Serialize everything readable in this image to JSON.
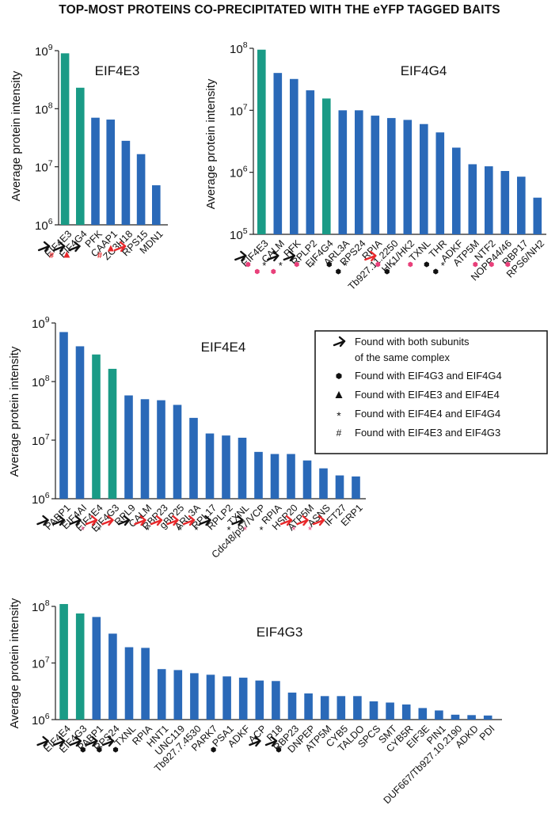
{
  "figure_title": "TOP-MOST PROTEINS CO-PRECIPITATED WITH THE eYFP TAGGED BAITS",
  "colors": {
    "bait": "#1a9b86",
    "prey": "#2a69b8",
    "black_arrow": "#111111",
    "red_arrow": "#e8282b",
    "pink_mark": "#e8407a"
  },
  "legend": {
    "items": [
      {
        "symbol": "arrow",
        "text": "Found with both subunits"
      },
      {
        "symbol": "none",
        "text": "of the same complex"
      },
      {
        "symbol": "hexagon",
        "text": "Found with EIF4G3 and EIF4G4"
      },
      {
        "symbol": "triangle",
        "text": "Found with EIF4E3 and EIF4E4"
      },
      {
        "symbol": "star",
        "text": "Found with EIF4E4 and EIF4G4"
      },
      {
        "symbol": "hash",
        "text": "Found with EIF4E3 and EIF4G3"
      }
    ]
  },
  "chart_data": [
    {
      "type": "bar",
      "title": "EIF4E3",
      "xlabel": "",
      "ylabel": "Average protein intensity",
      "yscale": "log",
      "ylim": [
        1000000,
        1000000000
      ],
      "yticks": [
        {
          "base": "10",
          "exp": "6"
        },
        {
          "base": "10",
          "exp": "7"
        },
        {
          "base": "10",
          "exp": "8"
        },
        {
          "base": "10",
          "exp": "9"
        }
      ],
      "categories": [
        "EIF4E3",
        "EIF4G4",
        "PFK",
        "CAAP1",
        "ZC3H18",
        "RPS15",
        "MDN1"
      ],
      "values": [
        900000000,
        230000000,
        70000000,
        65000000,
        28000000,
        16500000,
        4800000
      ],
      "bait": [
        true,
        true,
        false,
        false,
        false,
        false,
        false
      ],
      "markers": [
        {
          "arrow": "black",
          "sym": "hash"
        },
        {
          "arrow": "black",
          "sym": "triangle"
        },
        {
          "arrow": "black",
          "sym": ""
        },
        {
          "arrow": "",
          "sym": ""
        },
        {
          "arrow": "",
          "sym": "hash-triangle"
        },
        {
          "arrow": "red",
          "sym": ""
        },
        {
          "arrow": "",
          "sym": ""
        }
      ]
    },
    {
      "type": "bar",
      "title": "EIF4G4",
      "xlabel": "",
      "ylabel": "Average protein intensity",
      "yscale": "log",
      "ylim": [
        100000,
        100000000
      ],
      "yticks": [
        {
          "base": "10",
          "exp": "5"
        },
        {
          "base": "10",
          "exp": "6"
        },
        {
          "base": "10",
          "exp": "7"
        },
        {
          "base": "10",
          "exp": "8"
        }
      ],
      "categories": [
        "EIF4E3",
        "CALM",
        "PFK",
        "RPLP2",
        "EIF4G4",
        "ARL3A",
        "RPS24",
        "RPIA",
        "Tb927.11.2250",
        "HK1/HK2",
        "TXNL",
        "THR",
        "ADKF",
        "ATP5M",
        "NTF2",
        "NOPP44/46",
        "RBP17",
        "RPS6/NH2"
      ],
      "values": [
        95000000,
        40000000,
        32000000,
        21000000,
        15500000,
        10000000,
        10000000,
        8200000,
        7500000,
        7000000,
        6000000,
        4400000,
        2500000,
        1350000,
        1250000,
        1050000,
        850000,
        390000
      ],
      "bait": [
        true,
        false,
        false,
        false,
        true,
        false,
        false,
        false,
        false,
        false,
        false,
        false,
        false,
        false,
        false,
        false,
        false,
        false
      ],
      "markers": [
        {
          "arrow": "black",
          "sym": "pink"
        },
        {
          "arrow": "",
          "sym": "star-pink"
        },
        {
          "arrow": "black",
          "sym": "star-pink"
        },
        {
          "arrow": "black",
          "sym": "pink"
        },
        {
          "arrow": "",
          "sym": "star"
        },
        {
          "arrow": "",
          "sym": "hex"
        },
        {
          "arrow": "",
          "sym": "star-hex"
        },
        {
          "arrow": "",
          "sym": ""
        },
        {
          "arrow": "red",
          "sym": "pink"
        },
        {
          "arrow": "",
          "sym": "star-hex"
        },
        {
          "arrow": "",
          "sym": "pink"
        },
        {
          "arrow": "",
          "sym": "hex"
        },
        {
          "arrow": "",
          "sym": "star-hex"
        },
        {
          "arrow": "",
          "sym": ""
        },
        {
          "arrow": "",
          "sym": "pink"
        },
        {
          "arrow": "",
          "sym": "pink"
        },
        {
          "arrow": "",
          "sym": "pink"
        },
        {
          "arrow": "",
          "sym": ""
        }
      ]
    },
    {
      "type": "bar",
      "title": "EIF4E4",
      "xlabel": "",
      "ylabel": "Average protein intensity",
      "yscale": "log",
      "ylim": [
        1000000,
        1000000000
      ],
      "yticks": [
        {
          "base": "10",
          "exp": "6"
        },
        {
          "base": "10",
          "exp": "7"
        },
        {
          "base": "10",
          "exp": "8"
        },
        {
          "base": "10",
          "exp": "9"
        }
      ],
      "categories": [
        "PABP1",
        "EIF4AI",
        "EIF4E4",
        "EIF4G3",
        "RPL9",
        "CALM",
        "RBP23",
        "gBP25",
        "ARL3A",
        "RPL17",
        "RPLP2",
        "TXNL",
        "Cdc48/p97/VCP",
        "RPIA",
        "HSP20",
        "ATP5M",
        "ASNS",
        "IFT27",
        "ERP1"
      ],
      "values": [
        700000000,
        400000000,
        290000000,
        165000000,
        58000000,
        50000000,
        48000000,
        40000000,
        24000000,
        13000000,
        12000000,
        11000000,
        6300000,
        5800000,
        5800000,
        4500000,
        3300000,
        2500000,
        2400000
      ],
      "bait": [
        false,
        false,
        true,
        true,
        false,
        false,
        false,
        false,
        false,
        false,
        false,
        false,
        false,
        false,
        false,
        false,
        false,
        false,
        false
      ],
      "markers": [
        {
          "arrow": "black",
          "sym": ""
        },
        {
          "arrow": "black",
          "sym": ""
        },
        {
          "arrow": "black",
          "sym": "star-red"
        },
        {
          "arrow": "red",
          "sym": "star"
        },
        {
          "arrow": "red",
          "sym": ""
        },
        {
          "arrow": "black",
          "sym": ""
        },
        {
          "arrow": "red",
          "sym": "star"
        },
        {
          "arrow": "red",
          "sym": ""
        },
        {
          "arrow": "red",
          "sym": "star"
        },
        {
          "arrow": "red",
          "sym": "star"
        },
        {
          "arrow": "black",
          "sym": ""
        },
        {
          "arrow": "",
          "sym": "star"
        },
        {
          "arrow": "black",
          "sym": "star-red"
        },
        {
          "arrow": "",
          "sym": "star"
        },
        {
          "arrow": "",
          "sym": ""
        },
        {
          "arrow": "red",
          "sym": "star-red"
        },
        {
          "arrow": "red",
          "sym": "star-red"
        },
        {
          "arrow": "red",
          "sym": ""
        },
        {
          "arrow": "",
          "sym": ""
        }
      ]
    },
    {
      "type": "bar",
      "title": "EIF4G3",
      "xlabel": "",
      "ylabel": "Average protein intensity",
      "yscale": "log",
      "ylim": [
        1000000,
        100000000
      ],
      "yticks": [
        {
          "base": "10",
          "exp": "6"
        },
        {
          "base": "10",
          "exp": "7"
        },
        {
          "base": "10",
          "exp": "8"
        }
      ],
      "categories": [
        "EIF4E4",
        "EIF4G3",
        "PABP1",
        "RPS24",
        "TXNL",
        "RPIA",
        "HNT1",
        "UNC119",
        "Tb927.7.4530",
        "PARK7",
        "PSA1",
        "ADKF",
        "ACP",
        "P18",
        "RBP23",
        "DNPEP",
        "ATP5M",
        "CYB5",
        "TALDO",
        "SPCS",
        "SMT",
        "CYB5R",
        "EIF3E",
        "PIN1",
        "DUF667/Tb927.10.2190",
        "ADKD",
        "PDI"
      ],
      "values": [
        110000000,
        75000000,
        65000000,
        33000000,
        19000000,
        18500000,
        7800000,
        7500000,
        6600000,
        6200000,
        5800000,
        5500000,
        4900000,
        4800000,
        3000000,
        2900000,
        2600000,
        2600000,
        2600000,
        2100000,
        2000000,
        1850000,
        1600000,
        1450000,
        1220000,
        1200000,
        1180000
      ],
      "bait": [
        true,
        true,
        false,
        false,
        false,
        false,
        false,
        false,
        false,
        false,
        false,
        false,
        false,
        false,
        false,
        false,
        false,
        false,
        false,
        false,
        false,
        false,
        false,
        false,
        false,
        false,
        false
      ],
      "markers": [
        {
          "arrow": "black",
          "sym": ""
        },
        {
          "arrow": "black",
          "sym": ""
        },
        {
          "arrow": "black",
          "sym": "hex"
        },
        {
          "arrow": "black",
          "sym": "hex"
        },
        {
          "arrow": "black",
          "sym": "hex"
        },
        {
          "arrow": "",
          "sym": ""
        },
        {
          "arrow": "",
          "sym": ""
        },
        {
          "arrow": "",
          "sym": ""
        },
        {
          "arrow": "",
          "sym": ""
        },
        {
          "arrow": "",
          "sym": ""
        },
        {
          "arrow": "",
          "sym": "hex"
        },
        {
          "arrow": "",
          "sym": ""
        },
        {
          "arrow": "",
          "sym": ""
        },
        {
          "arrow": "black",
          "sym": ""
        },
        {
          "arrow": "black",
          "sym": "hex"
        },
        {
          "arrow": "",
          "sym": ""
        },
        {
          "arrow": "",
          "sym": ""
        },
        {
          "arrow": "",
          "sym": ""
        },
        {
          "arrow": "",
          "sym": ""
        },
        {
          "arrow": "",
          "sym": ""
        },
        {
          "arrow": "",
          "sym": ""
        },
        {
          "arrow": "",
          "sym": ""
        },
        {
          "arrow": "",
          "sym": ""
        },
        {
          "arrow": "",
          "sym": ""
        },
        {
          "arrow": "",
          "sym": ""
        },
        {
          "arrow": "",
          "sym": ""
        },
        {
          "arrow": "",
          "sym": ""
        }
      ]
    }
  ]
}
